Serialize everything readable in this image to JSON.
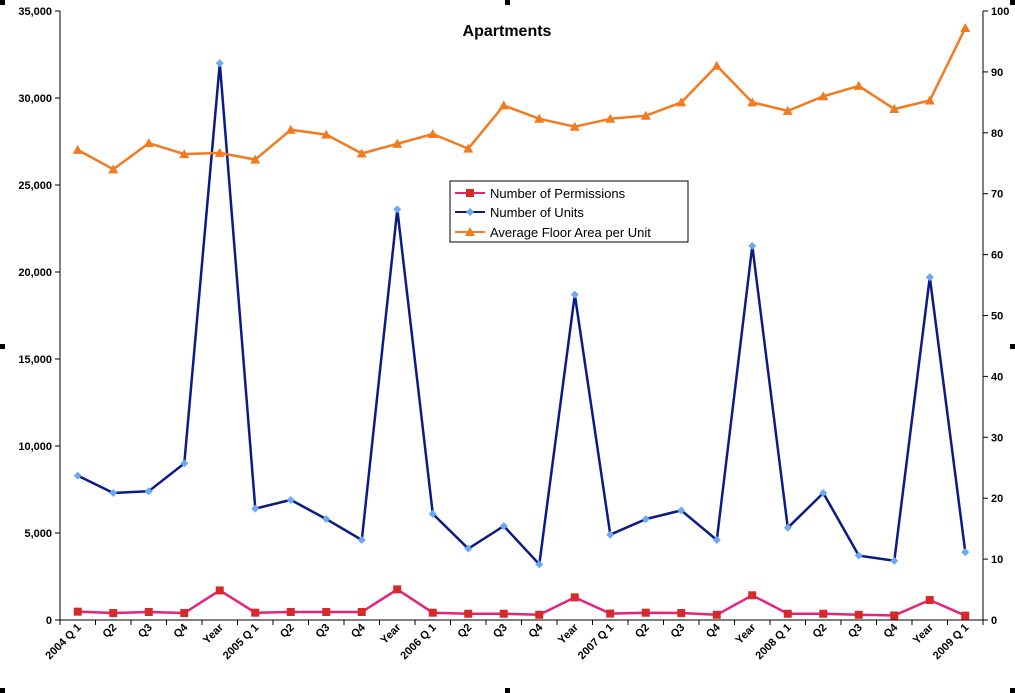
{
  "chart_data": {
    "type": "line",
    "title": "Apartments",
    "categories": [
      "2004 Q 1",
      "Q2",
      "Q3",
      "Q4",
      "Year",
      "2005 Q 1",
      "Q2",
      "Q3",
      "Q4",
      "Year",
      "2006 Q 1",
      "Q2",
      "Q3",
      "Q4",
      "Year",
      "2007 Q 1",
      "Q2",
      "Q3",
      "Q4",
      "Year",
      "2008 Q 1",
      "Q2",
      "Q3",
      "Q4",
      "Year",
      "2009 Q 1"
    ],
    "y_left": {
      "min": 0,
      "max": 35000,
      "ticks": [
        0,
        5000,
        10000,
        15000,
        20000,
        25000,
        30000,
        35000
      ],
      "tick_labels": [
        "0",
        "5,000",
        "10,000",
        "15,000",
        "20,000",
        "25,000",
        "30,000",
        "35,000"
      ]
    },
    "y_right": {
      "min": 0,
      "max": 100,
      "ticks": [
        0,
        10,
        20,
        30,
        40,
        50,
        60,
        70,
        80,
        90,
        100
      ],
      "tick_labels": [
        "0",
        "10",
        "20",
        "30",
        "40",
        "50",
        "60",
        "70",
        "80",
        "90",
        "100"
      ]
    },
    "series": [
      {
        "name": "Number of Permissions",
        "axis": "left",
        "color": "#e8227a",
        "marker": "square",
        "marker_color": "#d42a2a",
        "values": [
          480,
          400,
          460,
          400,
          1700,
          420,
          460,
          460,
          460,
          1760,
          420,
          360,
          360,
          300,
          1300,
          370,
          420,
          400,
          300,
          1420,
          360,
          360,
          300,
          260,
          1150,
          250
        ]
      },
      {
        "name": "Number of Units",
        "axis": "left",
        "color": "#0d1a86",
        "marker": "diamond",
        "marker_color": "#6aaaf0",
        "values": [
          8300,
          7300,
          7400,
          9000,
          32000,
          6400,
          6900,
          5800,
          4600,
          23600,
          6100,
          4100,
          5400,
          3200,
          18700,
          4900,
          5800,
          6300,
          4600,
          21500,
          5300,
          7300,
          3700,
          3400,
          19700,
          3900
        ]
      },
      {
        "name": "Average Floor Area per Unit",
        "axis": "right",
        "color": "#f47a20",
        "marker": "triangle",
        "marker_color": "#f47a20",
        "values": [
          77.2,
          74.0,
          78.3,
          76.5,
          76.7,
          75.6,
          80.5,
          79.7,
          76.6,
          78.2,
          79.8,
          77.4,
          84.5,
          82.3,
          81.0,
          82.3,
          82.8,
          85.0,
          91.0,
          85.0,
          83.6,
          86.0,
          87.7,
          83.9,
          85.3,
          97.2
        ]
      }
    ],
    "legend": {
      "placement": "center",
      "entries": [
        "Number of Permissions",
        "Number of Units",
        "Average Floor Area per Unit"
      ]
    }
  }
}
